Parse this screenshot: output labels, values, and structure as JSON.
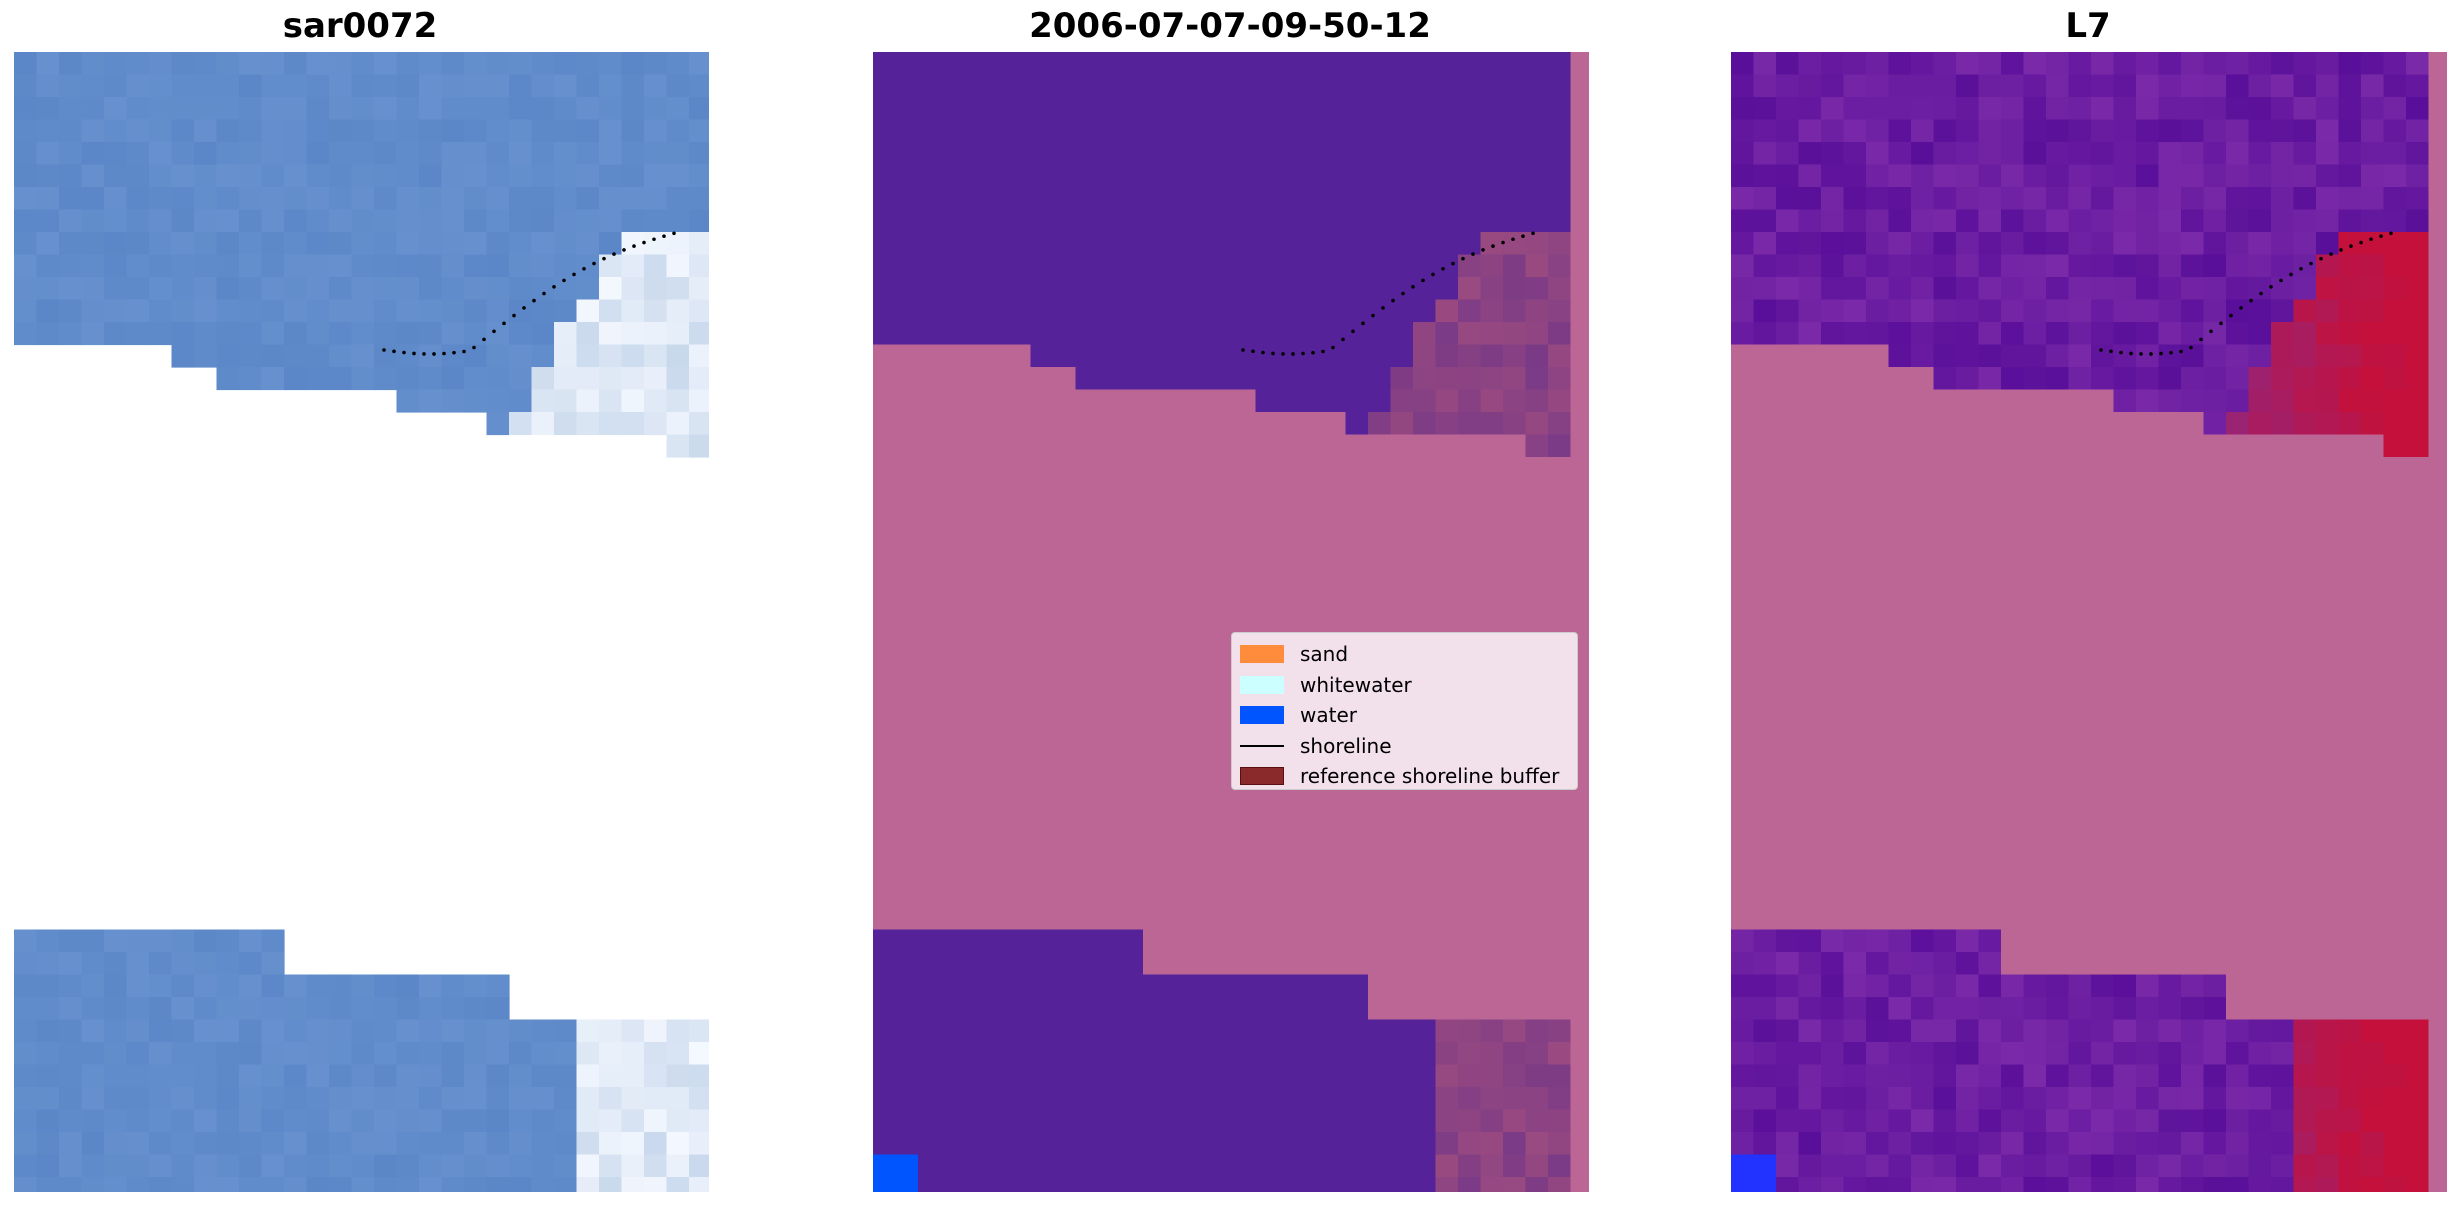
{
  "panels": [
    {
      "title": "sar0072"
    },
    {
      "title": "2006-07-07-09-50-12"
    },
    {
      "title": "L7"
    }
  ],
  "legend": {
    "items": [
      {
        "label": "sand",
        "kind": "patch",
        "color": "#ff8c3c"
      },
      {
        "label": "whitewater",
        "kind": "patch",
        "color": "#ccffff"
      },
      {
        "label": "water",
        "kind": "patch",
        "color": "#0055ff"
      },
      {
        "label": "shoreline",
        "kind": "line",
        "color": "#000000"
      },
      {
        "label": "reference shoreline buffer",
        "kind": "patch",
        "color": "#8b1a1a"
      }
    ]
  },
  "colors": {
    "water_rgb": "#5b87c8",
    "water_class": "#55229a",
    "nodata": "#bc6696",
    "whitewater_rgb": "#c8d8ec",
    "index_high": "#c4103a",
    "index_low": "#6a1aa0"
  }
}
